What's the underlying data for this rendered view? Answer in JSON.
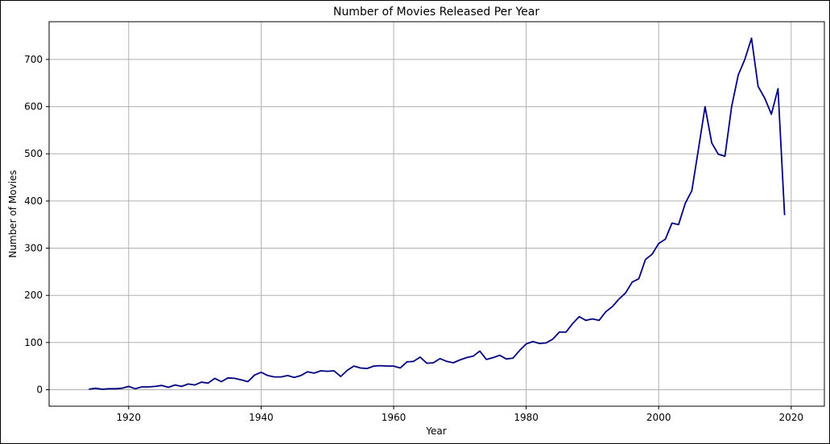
{
  "chart_data": {
    "type": "line",
    "title": "Number of Movies Released Per Year",
    "xlabel": "Year",
    "ylabel": "Number of Movies",
    "xlim": [
      1908,
      2025
    ],
    "ylim": [
      -35,
      780
    ],
    "xticks": [
      1920,
      1940,
      1960,
      1980,
      2000,
      2020
    ],
    "yticks": [
      0,
      100,
      200,
      300,
      400,
      500,
      600,
      700
    ],
    "grid": true,
    "line_color": "#000080",
    "series": [
      {
        "x": [
          1914,
          1915,
          1916,
          1917,
          1918,
          1919,
          1920,
          1921,
          1922,
          1923,
          1924,
          1925,
          1926,
          1927,
          1928,
          1929,
          1930,
          1931,
          1932,
          1933,
          1934,
          1935,
          1936,
          1937,
          1938,
          1939,
          1940,
          1941,
          1942,
          1943,
          1944,
          1945,
          1946,
          1947,
          1948,
          1949,
          1950,
          1951,
          1952,
          1953,
          1954,
          1955,
          1956,
          1957,
          1958,
          1959,
          1960,
          1961,
          1962,
          1963,
          1964,
          1965,
          1966,
          1967,
          1968,
          1969,
          1970,
          1971,
          1972,
          1973,
          1974,
          1975,
          1976,
          1977,
          1978,
          1979,
          1980,
          1981,
          1982,
          1983,
          1984,
          1985,
          1986,
          1987,
          1988,
          1989,
          1990,
          1991,
          1992,
          1993,
          1994,
          1995,
          1996,
          1997,
          1998,
          1999,
          2000,
          2001,
          2002,
          2003,
          2004,
          2005,
          2006,
          2007,
          2008,
          2009,
          2010,
          2011,
          2012,
          2013,
          2014,
          2015,
          2016,
          2017,
          2018,
          2019
        ],
        "y": [
          1,
          3,
          1,
          2,
          2,
          3,
          7,
          2,
          6,
          6,
          7,
          9,
          5,
          10,
          7,
          12,
          10,
          16,
          14,
          24,
          17,
          25,
          24,
          21,
          17,
          31,
          37,
          30,
          27,
          27,
          30,
          26,
          30,
          38,
          35,
          40,
          39,
          40,
          28,
          41,
          50,
          46,
          45,
          50,
          51,
          50,
          50,
          46,
          59,
          60,
          69,
          56,
          57,
          66,
          60,
          57,
          63,
          68,
          71,
          82,
          64,
          68,
          73,
          65,
          67,
          83,
          97,
          102,
          98,
          99,
          107,
          122,
          122,
          140,
          155,
          147,
          150,
          147,
          165,
          176,
          192,
          205,
          228,
          235,
          276,
          287,
          310,
          319,
          353,
          350,
          395,
          422,
          510,
          600,
          523,
          499,
          495,
          600,
          667,
          700,
          745,
          643,
          618,
          584,
          638,
          370
        ]
      }
    ]
  }
}
